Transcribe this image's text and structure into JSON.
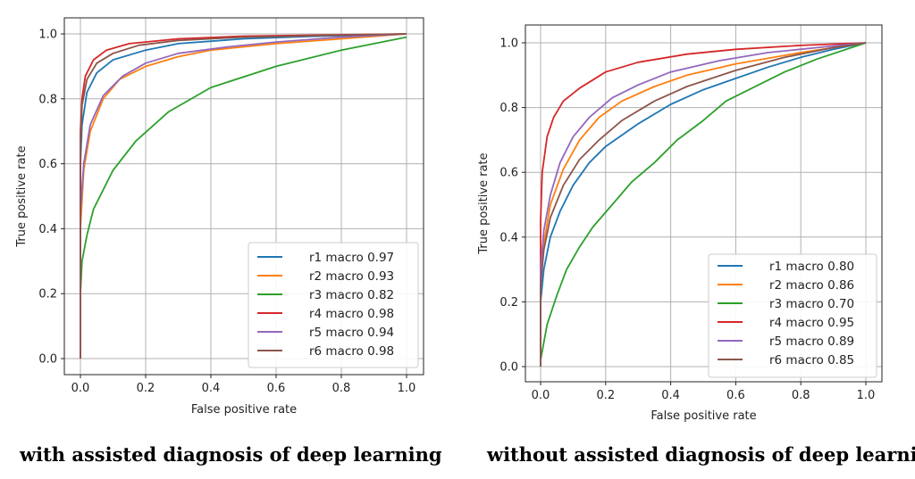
{
  "colors": {
    "r1": "#1f77b4",
    "r2": "#ff7f0e",
    "r3": "#2ca02c",
    "r4": "#d62728",
    "r5": "#9467bd",
    "r6": "#8c564b",
    "grid": "#b0b0b0"
  },
  "chart_data": [
    {
      "type": "line",
      "title": "",
      "xlabel": "False positive rate",
      "ylabel": "True positive rate",
      "xlim": [
        0,
        1
      ],
      "ylim": [
        0,
        1
      ],
      "xticks": [
        "0.0",
        "0.2",
        "0.4",
        "0.6",
        "0.8",
        "1.0"
      ],
      "yticks": [
        "0.0",
        "0.2",
        "0.4",
        "0.6",
        "0.8",
        "1.0"
      ],
      "grid": true,
      "legend_position": "lower-right",
      "caption": "with assisted diagnosis of deep learning",
      "series": [
        {
          "name": "r1 macro 0.97",
          "color": "r1",
          "points": [
            [
              0,
              0
            ],
            [
              0,
              0.6
            ],
            [
              0.005,
              0.72
            ],
            [
              0.02,
              0.82
            ],
            [
              0.05,
              0.88
            ],
            [
              0.1,
              0.92
            ],
            [
              0.2,
              0.95
            ],
            [
              0.3,
              0.97
            ],
            [
              0.5,
              0.985
            ],
            [
              0.7,
              0.992
            ],
            [
              1,
              1
            ]
          ]
        },
        {
          "name": "r2 macro 0.93",
          "color": "r2",
          "points": [
            [
              0,
              0
            ],
            [
              0,
              0.4
            ],
            [
              0.01,
              0.58
            ],
            [
              0.03,
              0.7
            ],
            [
              0.07,
              0.8
            ],
            [
              0.12,
              0.86
            ],
            [
              0.2,
              0.9
            ],
            [
              0.3,
              0.93
            ],
            [
              0.4,
              0.95
            ],
            [
              0.6,
              0.97
            ],
            [
              0.8,
              0.985
            ],
            [
              1,
              1
            ]
          ]
        },
        {
          "name": "r3 macro 0.82",
          "color": "r3",
          "points": [
            [
              0,
              0
            ],
            [
              0,
              0.2
            ],
            [
              0.005,
              0.3
            ],
            [
              0.02,
              0.38
            ],
            [
              0.04,
              0.46
            ],
            [
              0.1,
              0.58
            ],
            [
              0.17,
              0.67
            ],
            [
              0.27,
              0.76
            ],
            [
              0.4,
              0.835
            ],
            [
              0.6,
              0.9
            ],
            [
              0.8,
              0.95
            ],
            [
              1,
              0.99
            ]
          ]
        },
        {
          "name": "r4 macro 0.98",
          "color": "r4",
          "points": [
            [
              0,
              0
            ],
            [
              0,
              0.7
            ],
            [
              0.005,
              0.8
            ],
            [
              0.015,
              0.87
            ],
            [
              0.04,
              0.92
            ],
            [
              0.08,
              0.95
            ],
            [
              0.15,
              0.97
            ],
            [
              0.3,
              0.985
            ],
            [
              0.5,
              0.993
            ],
            [
              1,
              1
            ]
          ]
        },
        {
          "name": "r5 macro 0.94",
          "color": "r5",
          "points": [
            [
              0,
              0
            ],
            [
              0,
              0.45
            ],
            [
              0.01,
              0.6
            ],
            [
              0.03,
              0.72
            ],
            [
              0.07,
              0.81
            ],
            [
              0.13,
              0.87
            ],
            [
              0.2,
              0.91
            ],
            [
              0.3,
              0.94
            ],
            [
              0.45,
              0.96
            ],
            [
              0.6,
              0.975
            ],
            [
              0.8,
              0.99
            ],
            [
              1,
              1
            ]
          ]
        },
        {
          "name": "r6 macro 0.98",
          "color": "r6",
          "points": [
            [
              0,
              0
            ],
            [
              0,
              0.65
            ],
            [
              0.005,
              0.78
            ],
            [
              0.02,
              0.86
            ],
            [
              0.05,
              0.91
            ],
            [
              0.1,
              0.94
            ],
            [
              0.18,
              0.965
            ],
            [
              0.3,
              0.98
            ],
            [
              0.5,
              0.99
            ],
            [
              1,
              1
            ]
          ]
        }
      ]
    },
    {
      "type": "line",
      "title": "",
      "xlabel": "False positive rate",
      "ylabel": "True positive rate",
      "xlim": [
        0,
        1
      ],
      "ylim": [
        0,
        1
      ],
      "xticks": [
        "0.0",
        "0.2",
        "0.4",
        "0.6",
        "0.8",
        "1.0"
      ],
      "yticks": [
        "0.0",
        "0.2",
        "0.4",
        "0.6",
        "0.8",
        "1.0"
      ],
      "grid": true,
      "legend_position": "lower-right",
      "caption": "without assisted diagnosis of deep learning",
      "series": [
        {
          "name": "r1 macro 0.80",
          "color": "r1",
          "points": [
            [
              0,
              0
            ],
            [
              0,
              0.2
            ],
            [
              0.01,
              0.3
            ],
            [
              0.03,
              0.4
            ],
            [
              0.06,
              0.48
            ],
            [
              0.1,
              0.56
            ],
            [
              0.15,
              0.63
            ],
            [
              0.2,
              0.68
            ],
            [
              0.3,
              0.75
            ],
            [
              0.4,
              0.81
            ],
            [
              0.5,
              0.855
            ],
            [
              0.6,
              0.89
            ],
            [
              0.7,
              0.925
            ],
            [
              0.8,
              0.955
            ],
            [
              0.9,
              0.98
            ],
            [
              1,
              1
            ]
          ]
        },
        {
          "name": "r2 macro 0.86",
          "color": "r2",
          "points": [
            [
              0,
              0
            ],
            [
              0,
              0.25
            ],
            [
              0.01,
              0.38
            ],
            [
              0.03,
              0.5
            ],
            [
              0.07,
              0.61
            ],
            [
              0.12,
              0.7
            ],
            [
              0.18,
              0.77
            ],
            [
              0.25,
              0.82
            ],
            [
              0.35,
              0.865
            ],
            [
              0.45,
              0.9
            ],
            [
              0.6,
              0.935
            ],
            [
              0.8,
              0.97
            ],
            [
              1,
              1
            ]
          ]
        },
        {
          "name": "r3 macro 0.70",
          "color": "r3",
          "points": [
            [
              0,
              0
            ],
            [
              0,
              0.02
            ],
            [
              0.02,
              0.13
            ],
            [
              0.05,
              0.22
            ],
            [
              0.08,
              0.3
            ],
            [
              0.12,
              0.37
            ],
            [
              0.16,
              0.43
            ],
            [
              0.22,
              0.5
            ],
            [
              0.28,
              0.57
            ],
            [
              0.35,
              0.63
            ],
            [
              0.42,
              0.7
            ],
            [
              0.5,
              0.76
            ],
            [
              0.57,
              0.82
            ],
            [
              0.65,
              0.86
            ],
            [
              0.75,
              0.91
            ],
            [
              0.85,
              0.95
            ],
            [
              1,
              1
            ]
          ]
        },
        {
          "name": "r4 macro 0.95",
          "color": "r4",
          "points": [
            [
              0,
              0
            ],
            [
              0,
              0.45
            ],
            [
              0.005,
              0.6
            ],
            [
              0.02,
              0.71
            ],
            [
              0.04,
              0.77
            ],
            [
              0.07,
              0.82
            ],
            [
              0.12,
              0.86
            ],
            [
              0.2,
              0.91
            ],
            [
              0.3,
              0.94
            ],
            [
              0.45,
              0.965
            ],
            [
              0.6,
              0.98
            ],
            [
              0.8,
              0.992
            ],
            [
              1,
              1
            ]
          ]
        },
        {
          "name": "r5 macro 0.89",
          "color": "r5",
          "points": [
            [
              0,
              0
            ],
            [
              0,
              0.3
            ],
            [
              0.01,
              0.42
            ],
            [
              0.03,
              0.53
            ],
            [
              0.06,
              0.63
            ],
            [
              0.1,
              0.71
            ],
            [
              0.15,
              0.77
            ],
            [
              0.22,
              0.83
            ],
            [
              0.3,
              0.87
            ],
            [
              0.4,
              0.91
            ],
            [
              0.55,
              0.945
            ],
            [
              0.7,
              0.97
            ],
            [
              0.85,
              0.985
            ],
            [
              1,
              1
            ]
          ]
        },
        {
          "name": "r6 macro 0.85",
          "color": "r6",
          "points": [
            [
              0,
              0
            ],
            [
              0,
              0.25
            ],
            [
              0.01,
              0.36
            ],
            [
              0.03,
              0.46
            ],
            [
              0.07,
              0.56
            ],
            [
              0.12,
              0.64
            ],
            [
              0.18,
              0.7
            ],
            [
              0.25,
              0.76
            ],
            [
              0.35,
              0.82
            ],
            [
              0.45,
              0.865
            ],
            [
              0.6,
              0.915
            ],
            [
              0.75,
              0.955
            ],
            [
              0.9,
              0.985
            ],
            [
              1,
              1
            ]
          ]
        }
      ]
    }
  ]
}
